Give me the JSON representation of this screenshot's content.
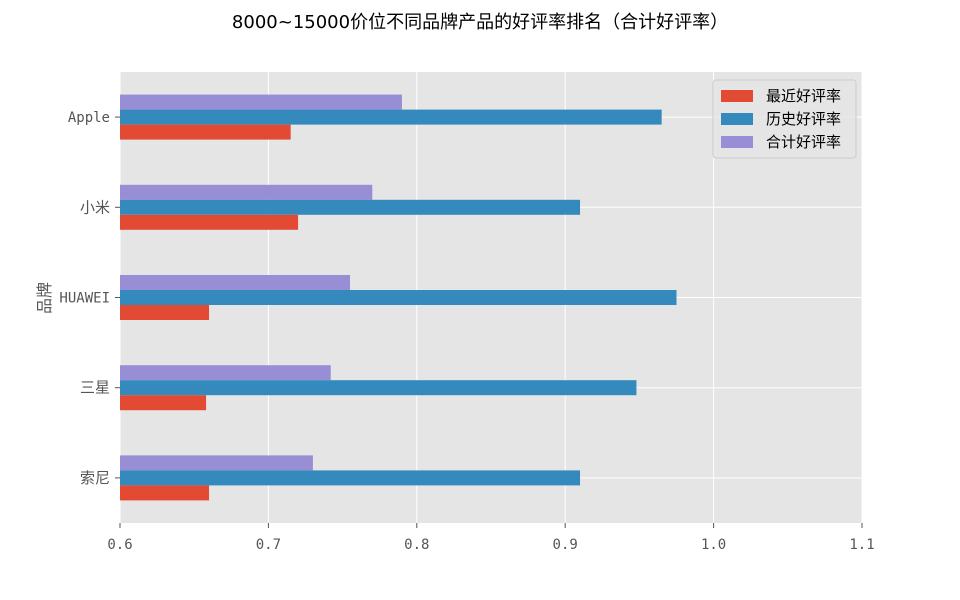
{
  "chart_data": {
    "type": "bar",
    "orientation": "horizontal",
    "title": "8000~15000价位不同品牌产品的好评率排名（合计好评率）",
    "xlabel": "",
    "ylabel": "品牌",
    "xlim": [
      0.6,
      1.1
    ],
    "xticks": [
      "0.6",
      "0.7",
      "0.8",
      "0.9",
      "1.0",
      "1.1"
    ],
    "grid": true,
    "legend_position": "top-right",
    "categories": [
      "Apple",
      "小米",
      "HUAWEI",
      "三星",
      "索尼"
    ],
    "series": [
      {
        "name": "最近好评率",
        "color": "#E24A33",
        "values": [
          0.715,
          0.72,
          0.66,
          0.658,
          0.66
        ]
      },
      {
        "name": "历史好评率",
        "color": "#348ABD",
        "values": [
          0.965,
          0.91,
          0.975,
          0.948,
          0.91
        ]
      },
      {
        "name": "合计好评率",
        "color": "#988ED5",
        "values": [
          0.79,
          0.77,
          0.755,
          0.742,
          0.73
        ]
      }
    ]
  }
}
